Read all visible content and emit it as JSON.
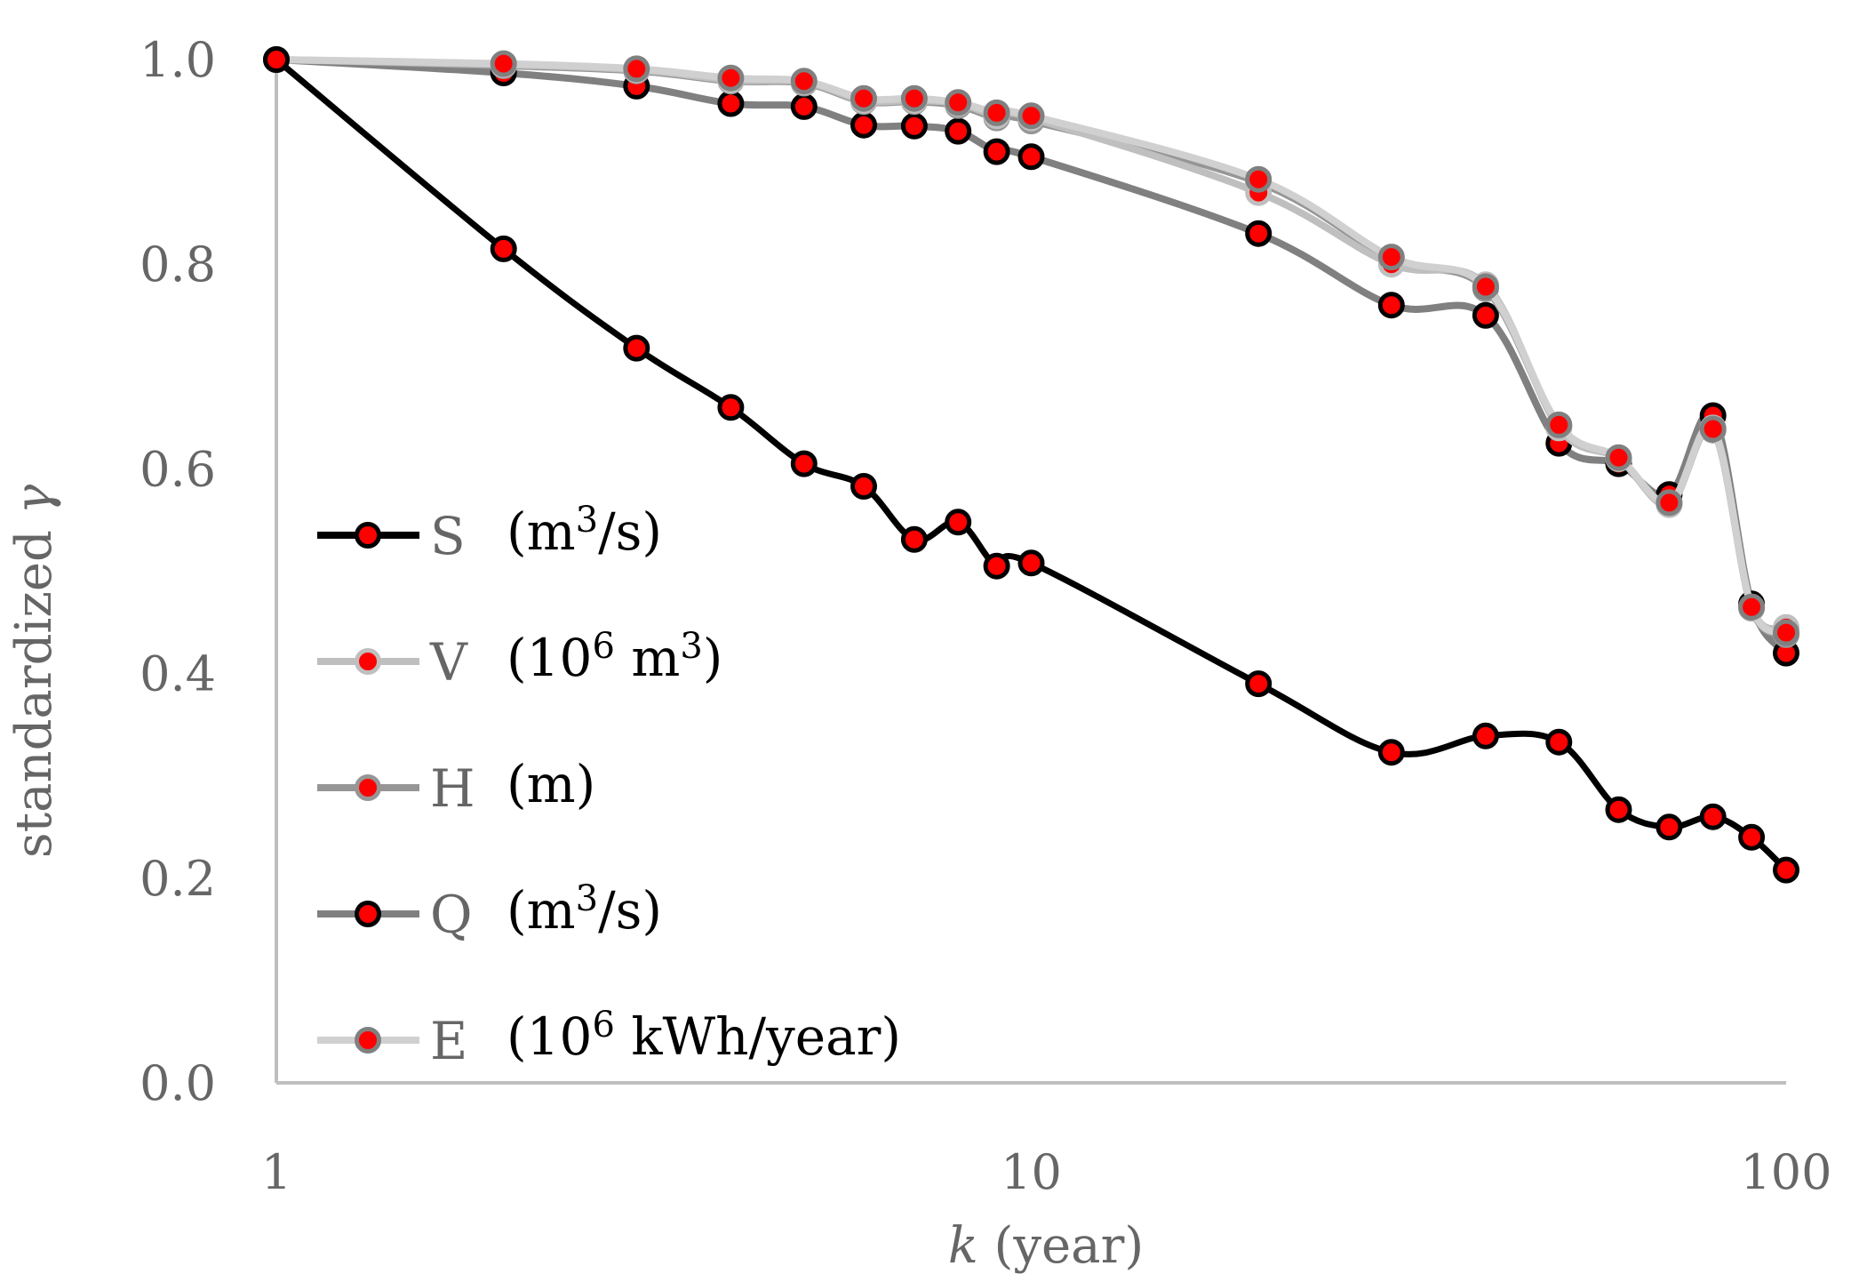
{
  "chart_data": {
    "type": "line",
    "title": "",
    "xlabel": "k (year)",
    "xlabel_var": "k",
    "xlabel_rest": " (year)",
    "ylabel": "standardized γ",
    "ylabel_base": "standardized ",
    "ylabel_var": "γ",
    "xscale": "log",
    "xlim": [
      1,
      100
    ],
    "ylim": [
      0.0,
      1.0
    ],
    "grid": false,
    "legend_position": "left-middle",
    "x_ticks": [
      1,
      10,
      100
    ],
    "x_tick_labels": [
      "1",
      "10",
      "100"
    ],
    "y_ticks": [
      0.0,
      0.2,
      0.4,
      0.6,
      0.8,
      1.0
    ],
    "y_tick_labels": [
      "0.0",
      "0.2",
      "0.4",
      "0.6",
      "0.8",
      "1.0"
    ],
    "x": [
      1,
      2,
      3,
      4,
      5,
      6,
      7,
      8,
      9,
      10,
      20,
      30,
      40,
      50,
      60,
      70,
      80,
      90,
      100
    ],
    "series": [
      {
        "name": "S",
        "unit": "(m³/s)",
        "unit_base": "(m",
        "unit_sup": "3",
        "unit_tail": "/s)",
        "line_color": "#000000",
        "marker_fill": "#ff0000",
        "marker_edge": "#000000",
        "values": [
          1.0,
          0.815,
          0.718,
          0.66,
          0.605,
          0.583,
          0.531,
          0.548,
          0.505,
          0.508,
          0.39,
          0.323,
          0.339,
          0.333,
          0.267,
          0.25,
          0.26,
          0.24,
          0.208
        ]
      },
      {
        "name": "V",
        "unit": "(10⁶ m³)",
        "unit_base": "(10",
        "unit_sup": "6",
        "unit_tail": " m",
        "unit_sup2": "3",
        "unit_tail2": ")",
        "line_color": "#bfbfbf",
        "marker_fill": "#ff0000",
        "marker_edge": "#bfbfbf",
        "values": [
          1.0,
          0.995,
          0.99,
          0.98,
          0.978,
          0.96,
          0.96,
          0.957,
          0.945,
          0.943,
          0.87,
          0.8,
          0.78,
          0.64,
          0.61,
          0.565,
          0.64,
          0.465,
          0.445
        ]
      },
      {
        "name": "H",
        "unit": "(m)",
        "unit_base": "(m)",
        "line_color": "#969696",
        "marker_fill": "#ff0000",
        "marker_edge": "#969696",
        "values": [
          1.0,
          0.994,
          0.989,
          0.979,
          0.977,
          0.959,
          0.959,
          0.955,
          0.943,
          0.94,
          0.88,
          0.805,
          0.776,
          0.642,
          0.61,
          0.566,
          0.638,
          0.464,
          0.438
        ]
      },
      {
        "name": "Q",
        "unit": "(m³/s)",
        "unit_base": "(m",
        "unit_sup": "3",
        "unit_tail": "/s)",
        "line_color": "#808080",
        "marker_fill": "#ff0000",
        "marker_edge": "#000000",
        "values": [
          1.0,
          0.987,
          0.974,
          0.957,
          0.954,
          0.936,
          0.935,
          0.93,
          0.91,
          0.905,
          0.83,
          0.76,
          0.75,
          0.625,
          0.605,
          0.575,
          0.652,
          0.468,
          0.42
        ]
      },
      {
        "name": "E",
        "unit": "(10⁶ kWh/year)",
        "unit_base": "(10",
        "unit_sup": "6",
        "unit_tail": " kWh/year)",
        "line_color": "#d0d0d0",
        "marker_fill": "#ff0000",
        "marker_edge": "#808080",
        "values": [
          1.0,
          0.996,
          0.991,
          0.982,
          0.979,
          0.962,
          0.962,
          0.958,
          0.948,
          0.945,
          0.883,
          0.807,
          0.778,
          0.643,
          0.611,
          0.567,
          0.639,
          0.465,
          0.44
        ]
      }
    ]
  }
}
